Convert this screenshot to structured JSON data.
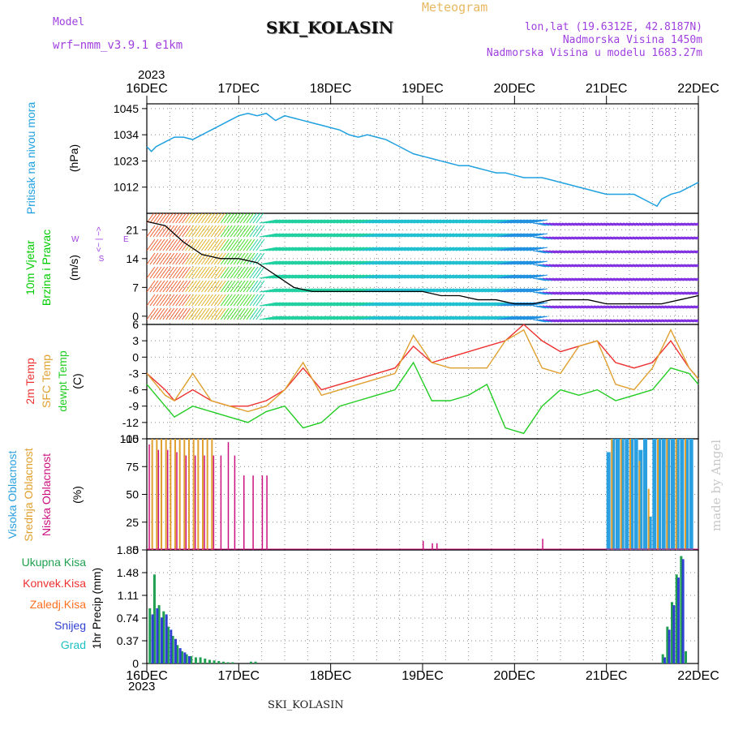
{
  "header": {
    "model_label": "Model",
    "model_name": "wrf−nmm_v3.9.1  e1km",
    "title": "SKI_KOLASIN",
    "meteogram_label": "Meteogram",
    "lonlat": "lon,lat (19.6312E, 42.8187N)",
    "altitude": "Nadmorska Visina 1450m",
    "model_altitude": "Nadmorska Visina u modelu 1683.27m",
    "year_top": "2023",
    "year_bottom": "2023",
    "footer_station": "SKI_KOLASIN",
    "signature": "made by Angel"
  },
  "colors": {
    "pressure": "#1fa0e0",
    "wind_label": "#00cc00",
    "direction_label": "#a040e0",
    "t2m": "#ee3030",
    "tsfc": "#e0a030",
    "dewpt": "#22cc22",
    "high_cloud": "#2aa0e0",
    "mid_cloud": "#e0a030",
    "low_cloud": "#cc1080",
    "total_precip": "#20a050",
    "conv_precip": "#ee3030",
    "frozen_precip": "#ff7020",
    "snow": "#3040d0",
    "graupel": "#20c0c0",
    "grid": "#888888"
  },
  "chart_data": [
    {
      "type": "line",
      "title": "",
      "ylabel": [
        "Pritisak na nivou mora",
        "(hPa)"
      ],
      "x_ticks": [
        "16DEC",
        "17DEC",
        "18DEC",
        "19DEC",
        "20DEC",
        "21DEC",
        "22DEC"
      ],
      "ylim": [
        1001,
        1047
      ],
      "yticks": [
        1012,
        1023,
        1034,
        1045
      ],
      "series": [
        {
          "name": "",
          "x": [
            0,
            0.05,
            0.1,
            0.2,
            0.3,
            0.4,
            0.5,
            0.6,
            0.7,
            0.8,
            0.9,
            1.0,
            1.1,
            1.2,
            1.3,
            1.4,
            1.5,
            1.6,
            1.7,
            1.8,
            1.9,
            2.0,
            2.1,
            2.2,
            2.3,
            2.4,
            2.5,
            2.6,
            2.7,
            2.8,
            2.9,
            3.0,
            3.1,
            3.2,
            3.3,
            3.4,
            3.5,
            3.6,
            3.7,
            3.8,
            3.9,
            4.0,
            4.1,
            4.2,
            4.3,
            4.4,
            4.5,
            4.6,
            4.7,
            4.8,
            4.9,
            5.0,
            5.1,
            5.2,
            5.3,
            5.4,
            5.5,
            5.55,
            5.6,
            5.7,
            5.8,
            5.9,
            6.0
          ],
          "y": [
            1029,
            1027,
            1029,
            1031,
            1033,
            1033,
            1032,
            1034,
            1036,
            1038,
            1040,
            1042,
            1043,
            1042,
            1043,
            1040,
            1042,
            1041,
            1040,
            1039,
            1038,
            1037,
            1036,
            1034,
            1033,
            1034,
            1033,
            1032,
            1030,
            1028,
            1026,
            1025,
            1024,
            1023,
            1022,
            1021,
            1021,
            1020,
            1019,
            1018,
            1018,
            1017,
            1016,
            1016,
            1016,
            1015,
            1014,
            1013,
            1012,
            1011,
            1010,
            1009,
            1009,
            1009,
            1009,
            1007,
            1005,
            1004,
            1007,
            1009,
            1010,
            1012,
            1014
          ]
        }
      ]
    },
    {
      "type": "line",
      "title": "",
      "ylabel": [
        "10m Vjetar",
        "Brzina i Pravac",
        "(m/s)"
      ],
      "direction_legend": [
        "W",
        "<− | −>",
        "E",
        "S"
      ],
      "ylim": [
        -2,
        25
      ],
      "yticks": [
        0,
        7,
        14,
        21
      ],
      "series": [
        {
          "name": "",
          "x": [
            0,
            0.2,
            0.4,
            0.6,
            0.8,
            1.0,
            1.2,
            1.4,
            1.6,
            1.8,
            2.0,
            2.2,
            2.4,
            2.6,
            2.8,
            3.0,
            3.2,
            3.4,
            3.6,
            3.8,
            4.0,
            4.2,
            4.4,
            4.6,
            4.8,
            5.0,
            5.2,
            5.4,
            5.6,
            5.8,
            6.0
          ],
          "y": [
            23,
            22,
            18,
            15,
            14,
            14,
            13,
            10,
            7,
            6,
            6,
            6,
            6,
            6,
            6,
            6,
            5,
            5,
            4,
            4,
            3,
            3,
            4,
            4,
            4,
            3,
            3,
            3,
            3,
            4,
            5
          ]
        }
      ]
    },
    {
      "type": "line",
      "title": "",
      "ylabel": [
        "2m Temp",
        "SFC Temp",
        "dewpt Temp",
        "(C)"
      ],
      "ylim": [
        -15,
        6
      ],
      "yticks": [
        -15,
        -12,
        -9,
        -6,
        -3,
        0,
        3,
        6
      ],
      "series": [
        {
          "name": "2m Temp",
          "x": [
            0,
            0.2,
            0.3,
            0.5,
            0.7,
            0.9,
            1.1,
            1.3,
            1.5,
            1.7,
            1.9,
            2.1,
            2.3,
            2.5,
            2.7,
            2.9,
            3.1,
            3.3,
            3.5,
            3.7,
            3.9,
            4.1,
            4.3,
            4.5,
            4.7,
            4.9,
            5.1,
            5.3,
            5.5,
            5.7,
            5.9,
            6.0
          ],
          "y": [
            -3,
            -6,
            -8,
            -6,
            -8,
            -9,
            -9,
            -8,
            -6,
            -2,
            -6,
            -5,
            -4,
            -3,
            -2,
            2,
            -1,
            0,
            1,
            2,
            3,
            6,
            3,
            1,
            2,
            3,
            -1,
            -2,
            -1,
            3,
            -2,
            -4
          ]
        },
        {
          "name": "SFC Temp",
          "x": [
            0,
            0.2,
            0.3,
            0.5,
            0.7,
            0.9,
            1.1,
            1.3,
            1.5,
            1.7,
            1.9,
            2.1,
            2.3,
            2.5,
            2.7,
            2.9,
            3.1,
            3.3,
            3.5,
            3.7,
            3.9,
            4.1,
            4.3,
            4.5,
            4.7,
            4.9,
            5.1,
            5.3,
            5.5,
            5.7,
            5.9,
            6.0
          ],
          "y": [
            -3,
            -7,
            -8,
            -3,
            -8,
            -9,
            -10,
            -9,
            -6,
            -1,
            -7,
            -6,
            -5,
            -4,
            -3,
            4,
            -1,
            -2,
            -2,
            -2,
            3,
            5,
            -2,
            -3,
            2,
            3,
            -5,
            -6,
            -2,
            5,
            -2,
            -4
          ]
        },
        {
          "name": "dewpt Temp",
          "x": [
            0,
            0.2,
            0.3,
            0.5,
            0.7,
            0.9,
            1.1,
            1.3,
            1.5,
            1.7,
            1.9,
            2.1,
            2.3,
            2.5,
            2.7,
            2.9,
            3.1,
            3.3,
            3.5,
            3.7,
            3.9,
            4.1,
            4.3,
            4.5,
            4.7,
            4.9,
            5.1,
            5.3,
            5.5,
            5.7,
            5.9,
            6.0
          ],
          "y": [
            -5,
            -9,
            -11,
            -9,
            -10,
            -11,
            -12,
            -10,
            -9,
            -13,
            -12,
            -9,
            -8,
            -7,
            -6,
            -1,
            -8,
            -8,
            -7,
            -5,
            -13,
            -14,
            -9,
            -6,
            -7,
            -6,
            -8,
            -7,
            -6,
            -2,
            -3,
            -5
          ]
        }
      ]
    },
    {
      "type": "bar",
      "title": "",
      "ylabel": [
        "Visoka Oblacnost",
        "Srednja Oblacnost",
        "Niska Oblacnost",
        "(%)"
      ],
      "ylim": [
        0,
        100
      ],
      "yticks": [
        0,
        25,
        50,
        75,
        100
      ],
      "series": [
        {
          "name": "Visoka Oblacnost",
          "x": [
            5.0,
            5.05,
            5.1,
            5.15,
            5.2,
            5.25,
            5.3,
            5.35,
            5.4,
            5.45,
            5.5,
            5.55,
            5.6,
            5.65,
            5.7,
            5.75,
            5.8,
            5.85,
            5.9
          ],
          "values": [
            88,
            100,
            100,
            100,
            100,
            100,
            100,
            90,
            100,
            30,
            100,
            100,
            100,
            100,
            100,
            100,
            100,
            100,
            100
          ]
        },
        {
          "name": "Srednja Oblacnost",
          "x": [
            0.05,
            0.1,
            0.15,
            0.2,
            0.25,
            0.3,
            0.35,
            0.4,
            0.45,
            0.5,
            0.55,
            0.6,
            0.65,
            0.7,
            5.05,
            5.15,
            5.25,
            5.35,
            5.45,
            5.55,
            5.65,
            5.75,
            5.85
          ],
          "values": [
            100,
            100,
            100,
            100,
            100,
            100,
            100,
            100,
            100,
            100,
            100,
            100,
            100,
            100,
            100,
            100,
            100,
            80,
            55,
            100,
            100,
            100,
            100
          ]
        },
        {
          "name": "Niska Oblacnost",
          "x": [
            0.02,
            0.12,
            0.22,
            0.32,
            0.42,
            0.52,
            0.62,
            0.72,
            0.8,
            0.88,
            0.95,
            1.05,
            1.15,
            1.25,
            1.3,
            3.0,
            3.1,
            3.15,
            4.3
          ],
          "values": [
            95,
            90,
            90,
            88,
            85,
            85,
            85,
            85,
            85,
            97,
            85,
            67,
            67,
            67,
            67,
            8,
            6,
            6,
            10
          ]
        }
      ]
    },
    {
      "type": "bar",
      "title": "",
      "ylabel": [
        "Ukupna Kisa",
        "Konvek.Kisa",
        "Zaledj.Kisa",
        "Snijeg",
        "Grad",
        "1hr Precip (mm)"
      ],
      "x_ticks": [
        "16DEC",
        "17DEC",
        "18DEC",
        "19DEC",
        "20DEC",
        "21DEC",
        "22DEC"
      ],
      "ylim": [
        0,
        1.85
      ],
      "yticks": [
        0,
        0.37,
        0.74,
        1.11,
        1.48,
        1.85
      ],
      "series": [
        {
          "name": "Ukupna Kisa",
          "x": [
            0.02,
            0.07,
            0.12,
            0.17,
            0.22,
            0.27,
            0.32,
            0.37,
            0.42,
            0.47,
            0.52,
            0.57,
            0.62,
            0.67,
            0.72,
            0.77,
            0.82,
            0.87,
            0.92,
            1.12,
            1.17,
            5.6,
            5.65,
            5.7,
            5.75,
            5.8,
            5.85
          ],
          "values": [
            0.9,
            1.45,
            0.95,
            0.85,
            0.6,
            0.45,
            0.3,
            0.2,
            0.15,
            0.12,
            0.1,
            0.1,
            0.08,
            0.06,
            0.05,
            0.04,
            0.03,
            0.02,
            0.02,
            0.03,
            0.03,
            0.15,
            0.6,
            1.0,
            1.45,
            1.75,
            0.2
          ]
        },
        {
          "name": "Snijeg",
          "x": [
            0.05,
            0.1,
            0.15,
            0.2,
            0.25,
            0.3,
            0.35,
            0.4,
            0.45,
            5.62,
            5.67,
            5.72,
            5.77,
            5.82
          ],
          "values": [
            0.8,
            0.9,
            0.75,
            0.8,
            0.55,
            0.4,
            0.25,
            0.18,
            0.12,
            0.1,
            0.55,
            0.95,
            1.4,
            1.7
          ]
        }
      ]
    }
  ]
}
